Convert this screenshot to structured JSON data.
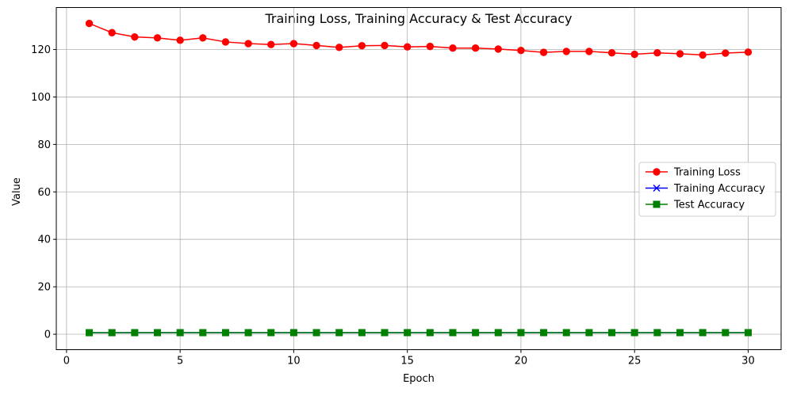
{
  "chart_data": {
    "type": "line",
    "title": "Training Loss, Training Accuracy & Test Accuracy",
    "xlabel": "Epoch",
    "ylabel": "Value",
    "xlim": [
      -0.45,
      31.45
    ],
    "ylim": [
      -6.5,
      137.7
    ],
    "xticks": [
      0,
      5,
      10,
      15,
      20,
      25,
      30
    ],
    "yticks": [
      0,
      20,
      40,
      60,
      80,
      100,
      120
    ],
    "grid": true,
    "legend_position": "center-right",
    "x": [
      1,
      2,
      3,
      4,
      5,
      6,
      7,
      8,
      9,
      10,
      11,
      12,
      13,
      14,
      15,
      16,
      17,
      18,
      19,
      20,
      21,
      22,
      23,
      24,
      25,
      26,
      27,
      28,
      29,
      30
    ],
    "series": [
      {
        "name": "Training Loss",
        "color": "#ff0000",
        "marker": "circle",
        "values": [
          131.0,
          127.1,
          125.3,
          124.9,
          123.9,
          124.9,
          123.2,
          122.5,
          122.1,
          122.5,
          121.7,
          120.9,
          121.6,
          121.7,
          121.1,
          121.3,
          120.6,
          120.6,
          120.2,
          119.6,
          118.8,
          119.2,
          119.2,
          118.6,
          118.0,
          118.6,
          118.2,
          117.7,
          118.5,
          118.9
        ]
      },
      {
        "name": "Training Accuracy",
        "color": "#0000ff",
        "marker": "x",
        "values": [
          0.64,
          0.65,
          0.66,
          0.66,
          0.66,
          0.66,
          0.67,
          0.67,
          0.67,
          0.67,
          0.67,
          0.68,
          0.67,
          0.67,
          0.68,
          0.68,
          0.68,
          0.68,
          0.68,
          0.68,
          0.68,
          0.68,
          0.68,
          0.68,
          0.69,
          0.68,
          0.68,
          0.69,
          0.68,
          0.68
        ]
      },
      {
        "name": "Test Accuracy",
        "color": "#008000",
        "marker": "square",
        "values": [
          0.66,
          0.66,
          0.67,
          0.67,
          0.67,
          0.67,
          0.67,
          0.67,
          0.68,
          0.68,
          0.67,
          0.68,
          0.68,
          0.68,
          0.68,
          0.68,
          0.68,
          0.68,
          0.68,
          0.68,
          0.68,
          0.68,
          0.68,
          0.68,
          0.68,
          0.68,
          0.68,
          0.68,
          0.68,
          0.68
        ]
      }
    ]
  }
}
